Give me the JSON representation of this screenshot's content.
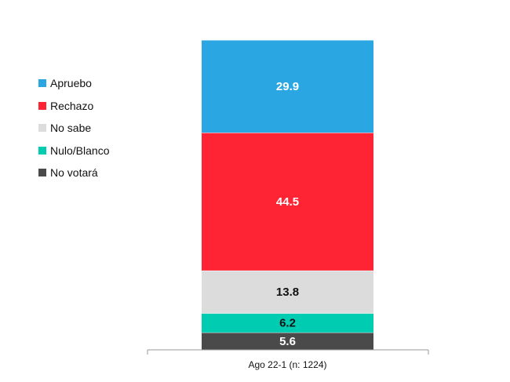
{
  "chart_data": {
    "type": "bar",
    "stacked": true,
    "categories": [
      "Ago 22-1 (n: 1224)"
    ],
    "series": [
      {
        "name": "Apruebo",
        "color": "#2AA7E2",
        "values": [
          29.9
        ]
      },
      {
        "name": "Rechazo",
        "color": "#FF2433",
        "values": [
          44.5
        ]
      },
      {
        "name": "No sabe",
        "color": "#DCDCDC",
        "values": [
          13.8
        ]
      },
      {
        "name": "Nulo/Blanco",
        "color": "#00CCB1",
        "values": [
          6.2
        ]
      },
      {
        "name": "No votará",
        "color": "#4A4A4A",
        "values": [
          5.6
        ]
      }
    ],
    "data_label_colors": [
      "#ffffff",
      "#ffffff",
      "#111111",
      "#111111",
      "#ffffff"
    ],
    "ylim": [
      0,
      100
    ],
    "legend_position": "left",
    "grid": false,
    "title": "",
    "xlabel": "",
    "ylabel": ""
  }
}
